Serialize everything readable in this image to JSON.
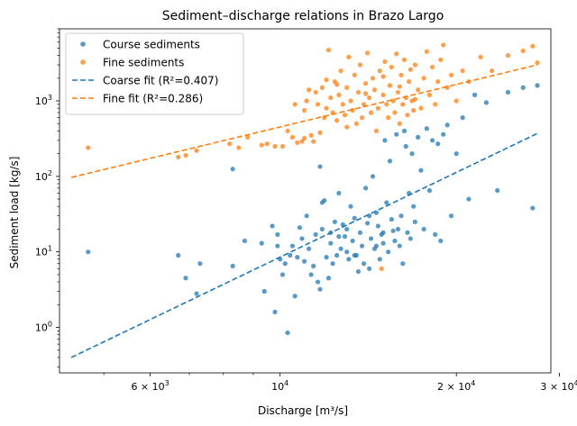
{
  "chart_data": {
    "type": "scatter",
    "title": "Sediment–discharge relations in Brazo Largo",
    "xlabel": "Discharge [m³/s]",
    "ylabel": "Sediment load [kg/s]",
    "xscale": "log",
    "yscale": "log",
    "xlim": [
      4200,
      29000
    ],
    "ylim": [
      0.25,
      9000
    ],
    "grid": false,
    "legend": "top-left",
    "x_ticks": [
      {
        "value": 6000,
        "base": "6 × 10",
        "exp": "3"
      },
      {
        "value": 10000,
        "base": "10",
        "exp": "4"
      },
      {
        "value": 20000,
        "base": "2 × 10",
        "exp": "4"
      },
      {
        "value": 30000,
        "base": "3 × 10",
        "exp": "4"
      }
    ],
    "y_ticks": [
      {
        "value": 1,
        "base": "10",
        "exp": "0"
      },
      {
        "value": 10,
        "base": "10",
        "exp": "1"
      },
      {
        "value": 100,
        "base": "10",
        "exp": "2"
      },
      {
        "value": 1000,
        "base": "10",
        "exp": "3"
      }
    ],
    "series": [
      {
        "name": "Course sediments",
        "kind": "scatter",
        "color": "#1f77b4",
        "points": [
          [
            4700,
            10
          ],
          [
            6700,
            9
          ],
          [
            6900,
            4.5
          ],
          [
            7200,
            2.8
          ],
          [
            7300,
            7
          ],
          [
            8300,
            6.5
          ],
          [
            8300,
            125
          ],
          [
            8700,
            14
          ],
          [
            9300,
            13
          ],
          [
            9400,
            3
          ],
          [
            9700,
            22
          ],
          [
            9800,
            1.6
          ],
          [
            9900,
            17
          ],
          [
            9900,
            12
          ],
          [
            10000,
            8
          ],
          [
            10100,
            5
          ],
          [
            10200,
            7
          ],
          [
            10300,
            0.85
          ],
          [
            10400,
            9
          ],
          [
            10500,
            12
          ],
          [
            10600,
            2.6
          ],
          [
            10700,
            8.5
          ],
          [
            10800,
            21
          ],
          [
            10900,
            15
          ],
          [
            11000,
            7.5
          ],
          [
            11100,
            30
          ],
          [
            11200,
            11
          ],
          [
            11300,
            5
          ],
          [
            11400,
            6.5
          ],
          [
            11500,
            17
          ],
          [
            11600,
            4
          ],
          [
            11700,
            3.2
          ],
          [
            11700,
            135
          ],
          [
            11800,
            20
          ],
          [
            11900,
            48
          ],
          [
            12000,
            8.5
          ],
          [
            12100,
            4.5
          ],
          [
            12200,
            13
          ],
          [
            12300,
            7
          ],
          [
            12400,
            25
          ],
          [
            12500,
            9
          ],
          [
            12600,
            60
          ],
          [
            12700,
            11
          ],
          [
            12800,
            23
          ],
          [
            12900,
            16
          ],
          [
            13000,
            10
          ],
          [
            13100,
            8
          ],
          [
            13200,
            40
          ],
          [
            13300,
            14
          ],
          [
            13400,
            28
          ],
          [
            13500,
            9
          ],
          [
            13600,
            5.5
          ],
          [
            13700,
            18
          ],
          [
            13800,
            12
          ],
          [
            13900,
            7
          ],
          [
            14000,
            70
          ],
          [
            14100,
            24
          ],
          [
            14200,
            6
          ],
          [
            14300,
            15
          ],
          [
            14400,
            100
          ],
          [
            14500,
            11
          ],
          [
            14600,
            33
          ],
          [
            14700,
            22
          ],
          [
            14800,
            8
          ],
          [
            14900,
            17
          ],
          [
            15000,
            13
          ],
          [
            15100,
            300
          ],
          [
            15200,
            45
          ],
          [
            15300,
            10
          ],
          [
            15400,
            160
          ],
          [
            15500,
            27
          ],
          [
            15600,
            19
          ],
          [
            15700,
            14
          ],
          [
            15800,
            360
          ],
          [
            15900,
            20
          ],
          [
            16000,
            12
          ],
          [
            16100,
            30
          ],
          [
            16200,
            7
          ],
          [
            16300,
            400
          ],
          [
            16400,
            250
          ],
          [
            16500,
            18
          ],
          [
            16600,
            60
          ],
          [
            16700,
            15
          ],
          [
            16800,
            200
          ],
          [
            16900,
            40
          ],
          [
            17000,
            25
          ],
          [
            17200,
            330
          ],
          [
            17400,
            120
          ],
          [
            17600,
            20
          ],
          [
            17800,
            430
          ],
          [
            18000,
            65
          ],
          [
            18200,
            300
          ],
          [
            18400,
            17
          ],
          [
            18600,
            270
          ],
          [
            18800,
            14
          ],
          [
            19000,
            360
          ],
          [
            19300,
            480
          ],
          [
            19600,
            30
          ],
          [
            20000,
            200
          ],
          [
            20500,
            600
          ],
          [
            21000,
            50
          ],
          [
            21500,
            1200
          ],
          [
            22500,
            950
          ],
          [
            23500,
            65
          ],
          [
            24500,
            1300
          ],
          [
            26000,
            1500
          ],
          [
            27000,
            38
          ],
          [
            27500,
            1600
          ],
          [
            12600,
            16
          ],
          [
            13000,
            20
          ],
          [
            13400,
            9
          ],
          [
            14200,
            30
          ],
          [
            15000,
            18
          ],
          [
            11800,
            45
          ],
          [
            12200,
            18
          ],
          [
            14600,
            12
          ]
        ]
      },
      {
        "name": "Fine sediments",
        "kind": "scatter",
        "color": "#ff7f0e",
        "points": [
          [
            4700,
            240
          ],
          [
            6700,
            180
          ],
          [
            6900,
            190
          ],
          [
            7200,
            220
          ],
          [
            8200,
            270
          ],
          [
            8500,
            240
          ],
          [
            8800,
            330
          ],
          [
            9300,
            260
          ],
          [
            9500,
            270
          ],
          [
            9800,
            250
          ],
          [
            10100,
            250
          ],
          [
            10300,
            400
          ],
          [
            10500,
            330
          ],
          [
            10600,
            900
          ],
          [
            10700,
            280
          ],
          [
            10900,
            290
          ],
          [
            11000,
            320
          ],
          [
            11100,
            1000
          ],
          [
            11200,
            1400
          ],
          [
            11300,
            350
          ],
          [
            11400,
            290
          ],
          [
            11500,
            1300
          ],
          [
            11600,
            900
          ],
          [
            11700,
            380
          ],
          [
            11800,
            1500
          ],
          [
            11900,
            600
          ],
          [
            12000,
            800
          ],
          [
            12100,
            4700
          ],
          [
            12200,
            1100
          ],
          [
            12300,
            700
          ],
          [
            12400,
            1800
          ],
          [
            12500,
            550
          ],
          [
            12600,
            1200
          ],
          [
            12700,
            2500
          ],
          [
            12800,
            900
          ],
          [
            12900,
            650
          ],
          [
            13000,
            1500
          ],
          [
            13100,
            3800
          ],
          [
            13200,
            1000
          ],
          [
            13300,
            750
          ],
          [
            13400,
            2200
          ],
          [
            13500,
            500
          ],
          [
            13600,
            1300
          ],
          [
            13700,
            3000
          ],
          [
            13800,
            600
          ],
          [
            13900,
            900
          ],
          [
            14000,
            1700
          ],
          [
            14100,
            4300
          ],
          [
            14200,
            1100
          ],
          [
            14300,
            700
          ],
          [
            14400,
            2000
          ],
          [
            14500,
            1400
          ],
          [
            14600,
            400
          ],
          [
            14700,
            800
          ],
          [
            14800,
            2500
          ],
          [
            14900,
            6
          ],
          [
            15000,
            1200
          ],
          [
            15100,
            3300
          ],
          [
            15200,
            900
          ],
          [
            15300,
            600
          ],
          [
            15400,
            1600
          ],
          [
            15500,
            2800
          ],
          [
            15600,
            1000
          ],
          [
            15700,
            700
          ],
          [
            15800,
            4200
          ],
          [
            15900,
            1300
          ],
          [
            16000,
            500
          ],
          [
            16100,
            2200
          ],
          [
            16200,
            900
          ],
          [
            16300,
            3500
          ],
          [
            16400,
            1100
          ],
          [
            16500,
            650
          ],
          [
            16600,
            1800
          ],
          [
            16700,
            2600
          ],
          [
            16800,
            1000
          ],
          [
            16900,
            750
          ],
          [
            17000,
            3000
          ],
          [
            17200,
            1400
          ],
          [
            17400,
            800
          ],
          [
            17600,
            2000
          ],
          [
            17800,
            4500
          ],
          [
            18000,
            1200
          ],
          [
            18200,
            2800
          ],
          [
            18400,
            900
          ],
          [
            18600,
            1800
          ],
          [
            18800,
            3500
          ],
          [
            19000,
            5500
          ],
          [
            19300,
            1500
          ],
          [
            19600,
            2200
          ],
          [
            20000,
            1000
          ],
          [
            20500,
            2500
          ],
          [
            21000,
            1800
          ],
          [
            22000,
            3800
          ],
          [
            23000,
            2500
          ],
          [
            24500,
            4000
          ],
          [
            26000,
            4600
          ],
          [
            27000,
            5300
          ],
          [
            27500,
            3200
          ],
          [
            12000,
            1900
          ],
          [
            13000,
            450
          ],
          [
            14000,
            1250
          ],
          [
            15000,
            2100
          ],
          [
            16000,
            1550
          ],
          [
            17000,
            1050
          ],
          [
            11000,
            750
          ],
          [
            12500,
            1650
          ]
        ]
      },
      {
        "name": "Coarse fit (R²=0.407)",
        "kind": "line",
        "color": "#1f77b4",
        "points": [
          [
            4400,
            0.4
          ],
          [
            27500,
            370
          ]
        ]
      },
      {
        "name": "Fine fit (R²=0.286)",
        "kind": "line",
        "color": "#ff7f0e",
        "points": [
          [
            4400,
            97
          ],
          [
            27500,
            3000
          ]
        ]
      }
    ]
  }
}
